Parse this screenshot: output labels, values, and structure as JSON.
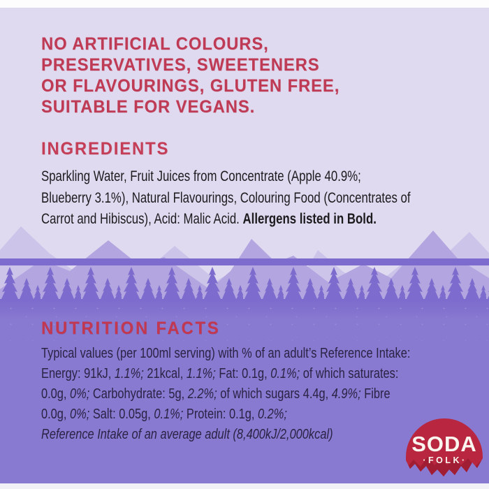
{
  "colors": {
    "sky": "#e0daf0",
    "mountain_back": "#cdc4ea",
    "mountain_front": "#b3a5df",
    "trees": "#7d6ccd",
    "purple_band": "#8879d1",
    "heading_red": "#bf3a54",
    "ingredients_ink": "#1c1b1e",
    "nutrition_ink": "#2a2344",
    "logo_red": "#b8273f",
    "logo_red_dark": "#a01d34",
    "logo_text": "#fbf5f0"
  },
  "claims": {
    "lines": [
      "NO ARTIFICIAL COLOURS,",
      "PRESERVATIVES, SWEETENERS",
      "OR FLAVOURINGS, GLUTEN FREE,",
      "SUITABLE FOR VEGANS."
    ]
  },
  "ingredients": {
    "heading": "INGREDIENTS",
    "lines": [
      [
        {
          "t": "Sparkling Water, Fruit Juices from Concentrate (Apple 40.9%;"
        }
      ],
      [
        {
          "t": "Blueberry 3.1%), Natural Flavourings, Colouring Food (Concentrates of"
        }
      ],
      [
        {
          "t": "Carrot and Hibiscus), Acid: Malic Acid. "
        },
        {
          "t": "Allergens listed in Bold.",
          "b": true
        }
      ]
    ]
  },
  "nutrition": {
    "heading": "NUTRITION FACTS",
    "lines": [
      [
        {
          "t": "Typical values (per 100ml serving) with % of an adult’s Reference Intake:"
        }
      ],
      [
        {
          "t": "Energy: 91kJ, "
        },
        {
          "t": "1.1%;",
          "i": true
        },
        {
          "t": " 21kcal, "
        },
        {
          "t": "1.1%;",
          "i": true
        },
        {
          "t": " Fat: 0.1g, "
        },
        {
          "t": "0.1%;",
          "i": true
        },
        {
          "t": " of which saturates:"
        }
      ],
      [
        {
          "t": "0.0g, "
        },
        {
          "t": "0%;",
          "i": true
        },
        {
          "t": " Carbohydrate: 5g, "
        },
        {
          "t": "2.2%;",
          "i": true
        },
        {
          "t": " of which sugars 4.4g, "
        },
        {
          "t": "4.9%;",
          "i": true
        },
        {
          "t": " Fibre"
        }
      ],
      [
        {
          "t": "0.0g, "
        },
        {
          "t": "0%;",
          "i": true
        },
        {
          "t": " Salt: 0.05g, "
        },
        {
          "t": "0.1%;",
          "i": true
        },
        {
          "t": " Protein: 0.1g, "
        },
        {
          "t": "0.2%;",
          "i": true
        }
      ],
      [
        {
          "t": "Reference Intake of an average adult (8,400kJ/2,000kcal)",
          "i": true
        }
      ]
    ]
  },
  "logo": {
    "line1": "SODA",
    "line2": "·FOLK·"
  }
}
